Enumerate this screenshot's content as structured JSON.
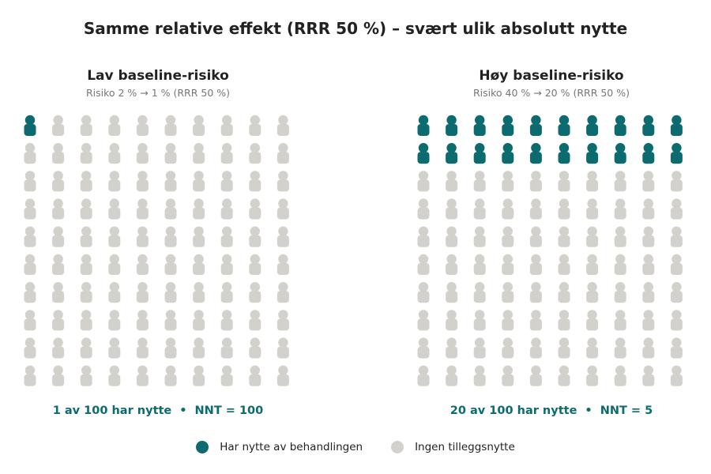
{
  "title": "Samme relative effekt (RRR 50 %) – svært ulik absolutt nytte",
  "colors": {
    "benefit": "#0b6b6e",
    "no_benefit": "#d3d1cc",
    "title": "#222222",
    "subtitle": "#777777"
  },
  "chart_data": [
    {
      "type": "waffle",
      "title": "Lav baseline-risiko",
      "subtitle": "Risiko 2 % → 1 %  (RRR 50 %)",
      "grid": {
        "rows": 10,
        "cols": 10
      },
      "total": 100,
      "benefit": 1,
      "summary": {
        "benefit_text": "1 av 100 har nytte",
        "separator": "•",
        "nnt_text": "NNT = 100"
      }
    },
    {
      "type": "waffle",
      "title": "Høy baseline-risiko",
      "subtitle": "Risiko 40 % → 20 %  (RRR 50 %)",
      "grid": {
        "rows": 10,
        "cols": 10
      },
      "total": 100,
      "benefit": 20,
      "summary": {
        "benefit_text": "20 av 100 har nytte",
        "separator": "•",
        "nnt_text": "NNT = 5"
      }
    }
  ],
  "legend": [
    {
      "label": "Har nytte av behandlingen",
      "color": "#0b6b6e"
    },
    {
      "label": "Ingen tilleggsnytte",
      "color": "#d3d1cc"
    }
  ]
}
